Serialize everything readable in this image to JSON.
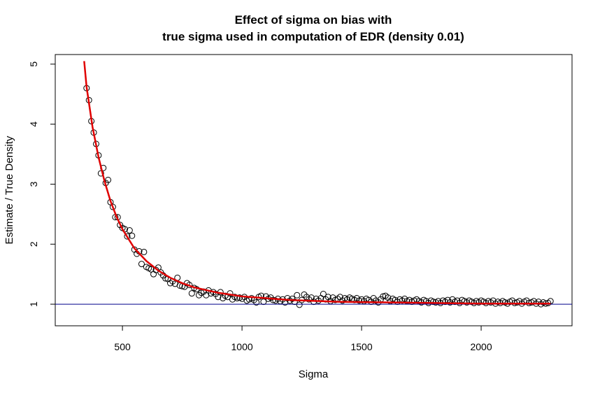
{
  "chart_data": {
    "type": "scatter",
    "title": [
      "Effect of sigma on bias with",
      "true sigma used in computation of EDR (density 0.01)"
    ],
    "xlabel": "Sigma",
    "ylabel": "Estimate / True Density",
    "xlim": [
      219,
      2380
    ],
    "ylim": [
      0.64,
      5.16
    ],
    "xticks": [
      500,
      1000,
      1500,
      2000
    ],
    "yticks": [
      1,
      2,
      3,
      4,
      5
    ],
    "point_color": "#000000",
    "x": [
      350,
      360,
      370,
      380,
      390,
      400,
      410,
      420,
      430,
      440,
      450,
      460,
      470,
      480,
      490,
      500,
      510,
      520,
      530,
      540,
      550,
      560,
      570,
      580,
      590,
      600,
      610,
      620,
      630,
      640,
      650,
      660,
      670,
      680,
      690,
      700,
      710,
      720,
      730,
      740,
      750,
      760,
      770,
      780,
      790,
      800,
      810,
      820,
      830,
      840,
      850,
      860,
      870,
      880,
      890,
      900,
      910,
      920,
      930,
      940,
      950,
      960,
      970,
      980,
      990,
      1000,
      1010,
      1020,
      1030,
      1040,
      1050,
      1060,
      1070,
      1080,
      1090,
      1100,
      1110,
      1120,
      1130,
      1140,
      1150,
      1160,
      1170,
      1180,
      1190,
      1200,
      1210,
      1220,
      1230,
      1240,
      1250,
      1260,
      1270,
      1280,
      1290,
      1300,
      1310,
      1320,
      1330,
      1340,
      1350,
      1360,
      1370,
      1380,
      1390,
      1400,
      1410,
      1420,
      1430,
      1440,
      1450,
      1460,
      1470,
      1480,
      1490,
      1500,
      1510,
      1520,
      1530,
      1540,
      1550,
      1560,
      1570,
      1580,
      1590,
      1600,
      1610,
      1620,
      1630,
      1640,
      1650,
      1660,
      1670,
      1680,
      1690,
      1700,
      1710,
      1720,
      1730,
      1740,
      1750,
      1760,
      1770,
      1780,
      1790,
      1800,
      1810,
      1820,
      1830,
      1840,
      1850,
      1860,
      1870,
      1880,
      1890,
      1900,
      1910,
      1920,
      1930,
      1940,
      1950,
      1960,
      1970,
      1980,
      1990,
      2000,
      2010,
      2020,
      2030,
      2040,
      2050,
      2060,
      2070,
      2080,
      2090,
      2100,
      2110,
      2120,
      2130,
      2140,
      2150,
      2160,
      2170,
      2180,
      2190,
      2200,
      2210,
      2220,
      2230,
      2240,
      2250,
      2260,
      2270,
      2280,
      2290
    ],
    "values": [
      4.6,
      4.4,
      4.05,
      3.86,
      3.67,
      3.48,
      3.18,
      3.27,
      3.02,
      3.07,
      2.7,
      2.62,
      2.45,
      2.45,
      2.32,
      2.27,
      2.25,
      2.13,
      2.23,
      2.14,
      1.91,
      1.84,
      1.88,
      1.67,
      1.87,
      1.62,
      1.6,
      1.58,
      1.5,
      1.57,
      1.61,
      1.53,
      1.48,
      1.43,
      1.42,
      1.35,
      1.38,
      1.34,
      1.44,
      1.31,
      1.3,
      1.29,
      1.35,
      1.32,
      1.18,
      1.27,
      1.25,
      1.15,
      1.19,
      1.21,
      1.15,
      1.23,
      1.18,
      1.2,
      1.17,
      1.12,
      1.2,
      1.1,
      1.14,
      1.12,
      1.18,
      1.08,
      1.12,
      1.1,
      1.11,
      1.09,
      1.12,
      1.06,
      1.08,
      1.1,
      1.07,
      1.03,
      1.12,
      1.14,
      1.04,
      1.13,
      1.09,
      1.11,
      1.07,
      1.06,
      1.09,
      1.05,
      1.08,
      1.03,
      1.1,
      1.06,
      1.09,
      1.04,
      1.15,
      0.99,
      1.07,
      1.16,
      1.12,
      1.08,
      1.11,
      1.04,
      1.09,
      1.06,
      1.1,
      1.17,
      1.08,
      1.12,
      1.05,
      1.11,
      1.07,
      1.09,
      1.12,
      1.06,
      1.1,
      1.08,
      1.11,
      1.09,
      1.07,
      1.1,
      1.06,
      1.08,
      1.05,
      1.09,
      1.07,
      1.04,
      1.1,
      1.06,
      1.03,
      1.08,
      1.13,
      1.14,
      1.11,
      1.05,
      1.09,
      1.07,
      1.04,
      1.08,
      1.06,
      1.09,
      1.05,
      1.07,
      1.04,
      1.06,
      1.08,
      1.05,
      1.03,
      1.07,
      1.05,
      1.02,
      1.06,
      1.04,
      1.03,
      1.05,
      1.02,
      1.06,
      1.04,
      1.07,
      1.03,
      1.08,
      1.04,
      1.06,
      1.02,
      1.07,
      1.05,
      1.03,
      1.06,
      1.04,
      1.02,
      1.05,
      1.03,
      1.06,
      1.04,
      1.02,
      1.05,
      1.03,
      1.06,
      1.01,
      1.04,
      1.02,
      1.05,
      1.03,
      1.01,
      1.04,
      1.06,
      1.02,
      1.03,
      1.05,
      1.01,
      1.04,
      1.06,
      1.02,
      1.03,
      1.05,
      1.01,
      1.04,
      1.0,
      1.03,
      1.01,
      1.02,
      1.05
    ],
    "fit": {
      "color": "#e00000",
      "x": [
        340,
        350,
        375,
        400,
        425,
        450,
        475,
        500,
        550,
        600,
        650,
        700,
        750,
        800,
        900,
        1000,
        1200,
        1400,
        1600,
        1800,
        2000,
        2290
      ],
      "values": [
        5.05,
        4.62,
        3.95,
        3.45,
        3.05,
        2.72,
        2.46,
        2.25,
        1.93,
        1.72,
        1.56,
        1.44,
        1.35,
        1.28,
        1.19,
        1.13,
        1.07,
        1.04,
        1.03,
        1.02,
        1.01,
        1.01
      ]
    },
    "hline": {
      "value": 1,
      "color": "#00008b"
    }
  }
}
